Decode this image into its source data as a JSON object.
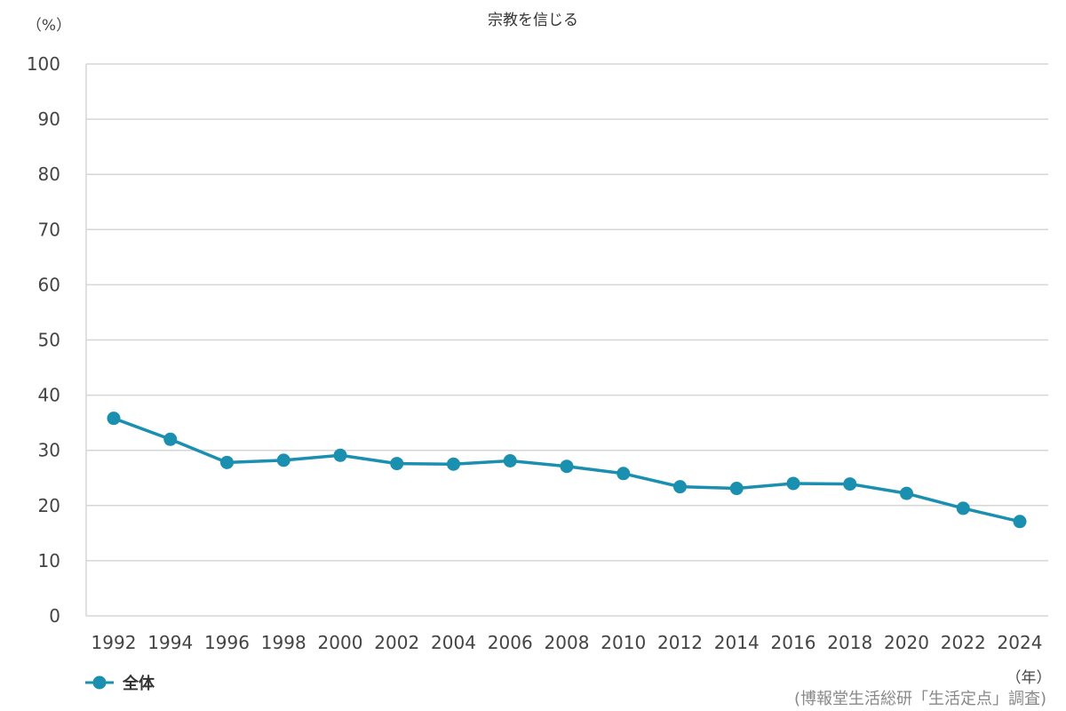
{
  "chart_data": {
    "type": "line",
    "title": "宗教を信じる",
    "ylabel": "（%）",
    "xlabel": "（年）",
    "source": "(博報堂生活総研「生活定点」調査)",
    "ylim": [
      0,
      100
    ],
    "yticks": [
      "0",
      "10",
      "20",
      "30",
      "40",
      "50",
      "60",
      "70",
      "80",
      "90",
      "100"
    ],
    "categories": [
      "1992",
      "1994",
      "1996",
      "1998",
      "2000",
      "2002",
      "2004",
      "2006",
      "2008",
      "2010",
      "2012",
      "2014",
      "2016",
      "2018",
      "2020",
      "2022",
      "2024"
    ],
    "series": [
      {
        "name": "全体",
        "color": "#1a8fb0",
        "values": [
          35.8,
          32.0,
          27.8,
          28.2,
          29.1,
          27.6,
          27.5,
          28.1,
          27.1,
          25.8,
          23.4,
          23.1,
          24.0,
          23.9,
          22.2,
          19.5,
          17.1
        ]
      }
    ],
    "grid": true,
    "legend_position": "bottom-left"
  }
}
